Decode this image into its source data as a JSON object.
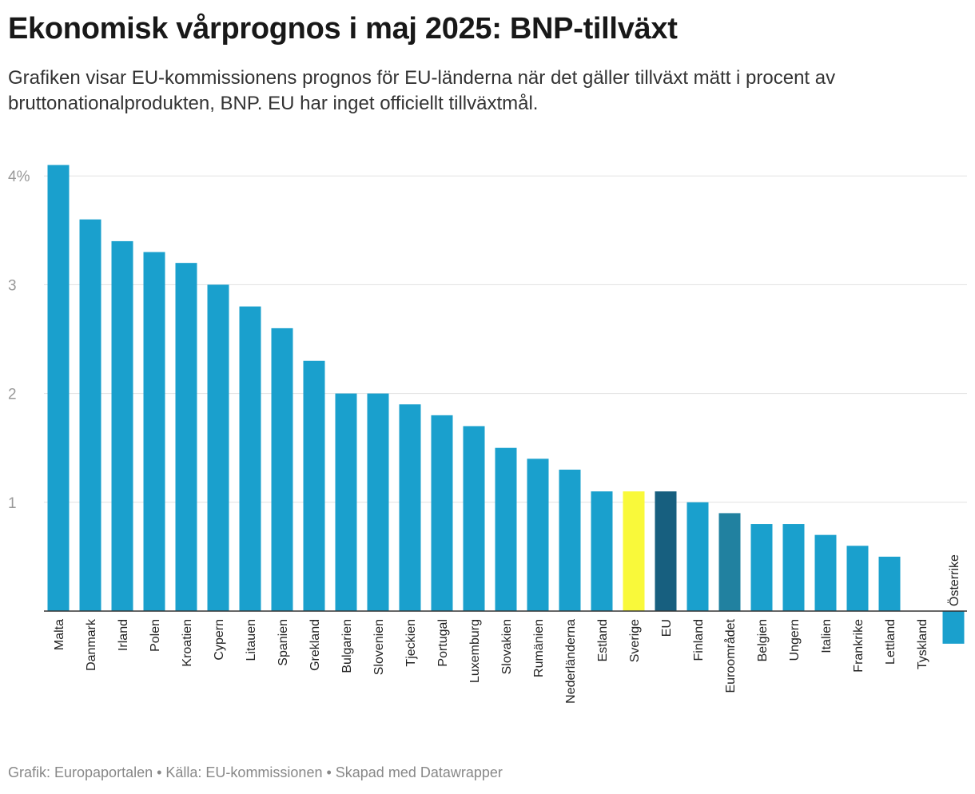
{
  "title": "Ekonomisk vårprognos i maj 2025: BNP-tillväxt",
  "subtitle": "Grafiken visar EU-kommissionens prognos för EU-länderna när det gäller tillväxt mätt i procent av bruttonationalprodukten, BNP. EU har inget officiellt tillväxtmål.",
  "footer": "Grafik: Europaportalen • Källa: EU-kommissionen • Skapad med Datawrapper",
  "colors": {
    "default": "#1aa0cd",
    "highlight_sverige": "#f9f93a",
    "highlight_eu": "#175f7f",
    "highlight_euroomradet": "#2181a0",
    "grid": "#e1e1e1",
    "axis": "#333333"
  },
  "chart_data": {
    "type": "bar",
    "title": "",
    "xlabel": "",
    "ylabel": "",
    "ylim": [
      -0.3,
      4.2
    ],
    "y_ticks": [
      {
        "value": 4,
        "label": "4%"
      },
      {
        "value": 3,
        "label": "3"
      },
      {
        "value": 2,
        "label": "2"
      },
      {
        "value": 1,
        "label": "1"
      }
    ],
    "grid": true,
    "categories": [
      "Malta",
      "Danmark",
      "Irland",
      "Polen",
      "Kroatien",
      "Cypern",
      "Litauen",
      "Spanien",
      "Grekland",
      "Bulgarien",
      "Slovenien",
      "Tjeckien",
      "Portugal",
      "Luxemburg",
      "Slovakien",
      "Rumänien",
      "Nederländerna",
      "Estland",
      "Sverige",
      "EU",
      "Finland",
      "Euroområdet",
      "Belgien",
      "Ungern",
      "Italien",
      "Frankrike",
      "Lettland",
      "Tyskland",
      "Österrike"
    ],
    "values": [
      4.1,
      3.6,
      3.4,
      3.3,
      3.2,
      3.0,
      2.8,
      2.6,
      2.3,
      2.0,
      2.0,
      1.9,
      1.8,
      1.7,
      1.5,
      1.4,
      1.3,
      1.1,
      1.1,
      1.1,
      1.0,
      0.9,
      0.8,
      0.8,
      0.7,
      0.6,
      0.5,
      0.0,
      -0.3
    ],
    "highlights": {
      "Sverige": "highlight_sverige",
      "EU": "highlight_eu",
      "Euroområdet": "highlight_euroomradet"
    }
  }
}
